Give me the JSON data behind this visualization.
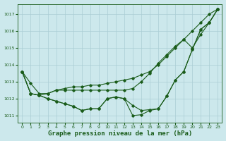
{
  "bg_color": "#cce8ec",
  "grid_color": "#aacdd4",
  "line_color": "#1a5c1a",
  "xlabel": "Graphe pression niveau de la mer (hPa)",
  "xlabel_fontsize": 6.5,
  "ylabel_ticks": [
    1011,
    1012,
    1013,
    1014,
    1015,
    1016,
    1017
  ],
  "xticks": [
    0,
    1,
    2,
    3,
    4,
    5,
    6,
    7,
    8,
    9,
    10,
    11,
    12,
    13,
    14,
    15,
    16,
    17,
    18,
    19,
    20,
    21,
    22,
    23
  ],
  "ylim": [
    1010.6,
    1017.6
  ],
  "xlim": [
    -0.5,
    23.5
  ],
  "s1": [
    1013.6,
    1012.9,
    1012.3,
    1012.3,
    1012.5,
    1012.6,
    1012.7,
    1012.7,
    1012.8,
    1012.8,
    1012.9,
    1013.0,
    1013.1,
    1013.2,
    1013.4,
    1013.6,
    1014.0,
    1014.5,
    1015.0,
    1015.5,
    1016.0,
    1016.5,
    1017.0,
    1017.3
  ],
  "s2": [
    1013.6,
    1012.3,
    1012.2,
    1012.3,
    1012.5,
    1012.5,
    1012.5,
    1012.5,
    1012.5,
    1012.5,
    1012.5,
    1012.5,
    1012.5,
    1012.6,
    1013.0,
    1013.5,
    1014.1,
    1014.6,
    1015.1,
    1015.5,
    1015.0,
    1015.8,
    1016.5,
    1017.3
  ],
  "s3": [
    1013.6,
    1012.3,
    1012.2,
    1012.0,
    1011.85,
    1011.7,
    1011.55,
    1011.3,
    1011.4,
    1011.4,
    1012.0,
    1012.1,
    1012.0,
    1011.6,
    1011.3,
    1011.35,
    1011.4,
    1012.15,
    1013.1,
    1013.6,
    1014.9,
    1016.1,
    1016.5,
    1017.3
  ],
  "s4": [
    1013.6,
    1012.3,
    1012.2,
    1012.0,
    1011.85,
    1011.7,
    1011.55,
    1011.3,
    1011.4,
    1011.4,
    1012.0,
    1012.1,
    1012.0,
    1011.0,
    1011.05,
    1011.3,
    1011.4,
    1012.15,
    1013.1,
    1013.6,
    1014.9,
    1016.1,
    1016.5,
    1017.3
  ]
}
